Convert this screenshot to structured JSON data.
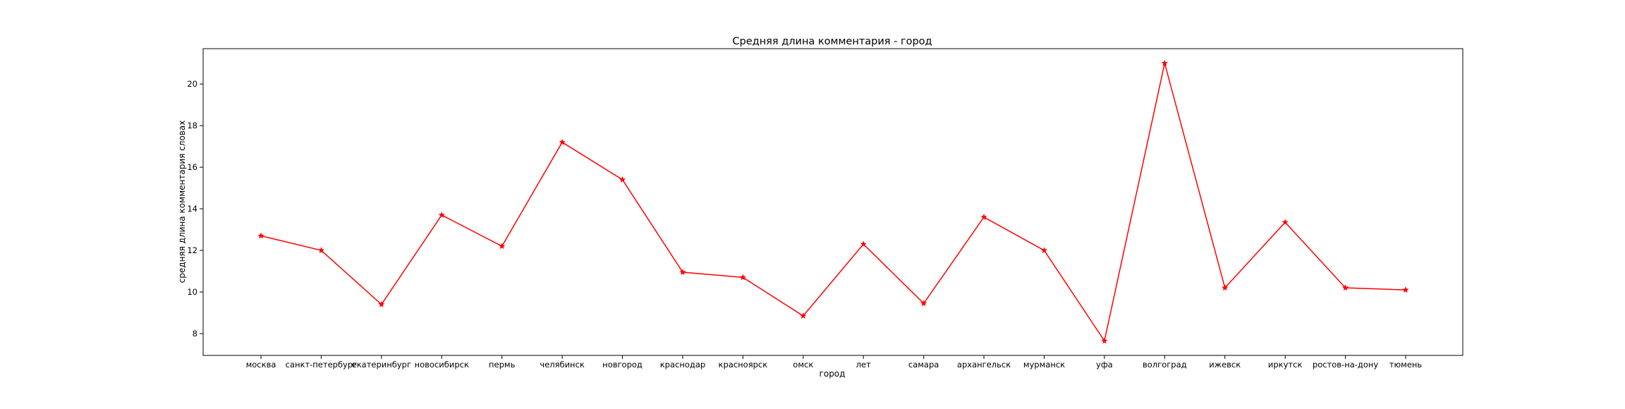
{
  "chart_data": {
    "type": "line",
    "title": "Средняя длина комментария - город",
    "xlabel": "город",
    "ylabel": "средняя длина комментария словах",
    "categories": [
      "москва",
      "санкт-петербург",
      "екатеринбург",
      "новосибирск",
      "пермь",
      "челябинск",
      "новгород",
      "краснодар",
      "красноярск",
      "омск",
      "лет",
      "самара",
      "архангельск",
      "мурманск",
      "уфа",
      "волгоград",
      "ижевск",
      "иркутск",
      "ростов-на-дону",
      "тюмень"
    ],
    "series": [
      {
        "values": [
          12.7,
          12.0,
          9.4,
          13.7,
          12.2,
          17.2,
          15.4,
          10.95,
          10.7,
          8.85,
          12.3,
          9.45,
          13.6,
          12.0,
          7.65,
          21.0,
          10.2,
          13.35,
          10.2,
          10.1
        ],
        "color": "#ff0000",
        "marker": "star"
      }
    ],
    "yticks": [
      8,
      10,
      12,
      14,
      16,
      18,
      20
    ],
    "ylim": [
      6.95,
      21.7
    ],
    "grid": false,
    "legend": "none"
  }
}
